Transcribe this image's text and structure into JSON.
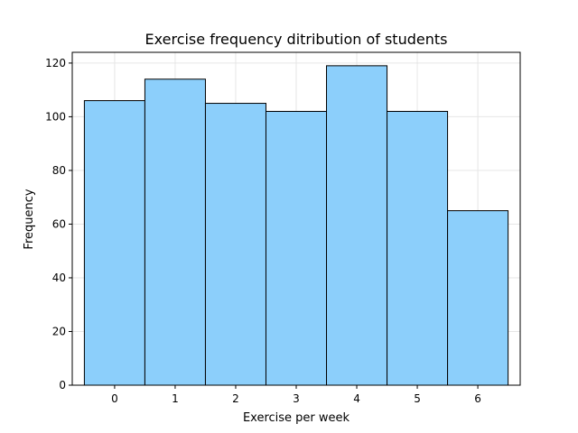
{
  "chart_data": {
    "type": "bar",
    "title": "Exercise frequency ditribution of students",
    "xlabel": "Exercise per week",
    "ylabel": "Frequency",
    "categories": [
      "0",
      "1",
      "2",
      "3",
      "4",
      "5",
      "6"
    ],
    "values": [
      106,
      114,
      105,
      102,
      119,
      102,
      65
    ],
    "xlim": [
      -0.7,
      6.7
    ],
    "ylim": [
      0,
      124
    ],
    "yticks": [
      0,
      20,
      40,
      60,
      80,
      100,
      120
    ],
    "grid": true,
    "bar_color": "#8ccffb",
    "edge_color": "#000000",
    "grid_color": "#e6e6e6"
  }
}
